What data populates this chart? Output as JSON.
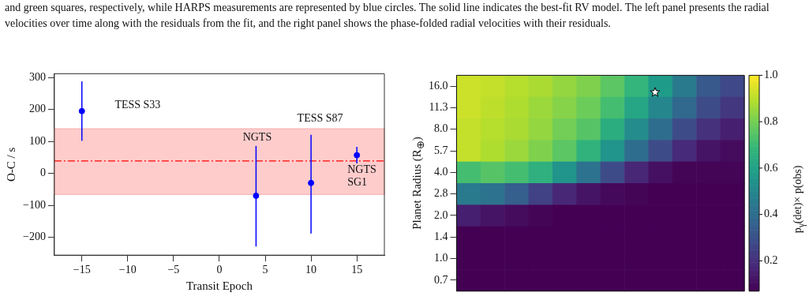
{
  "chart_data": [
    {
      "type": "scatter",
      "xlabel": "Transit Epoch",
      "ylabel": "O-C / s",
      "x": [
        -15,
        4,
        10,
        15
      ],
      "values": [
        195,
        -70,
        -30,
        57
      ],
      "errors": [
        [
          102,
          288
        ],
        [
          -229,
          86
        ],
        [
          -188,
          121
        ],
        [
          31,
          83
        ]
      ],
      "color": "#0000ff",
      "marker": "circle",
      "legend": false,
      "grid": false,
      "xlim": [
        -18,
        18
      ],
      "xticks": [
        -15,
        -10,
        -5,
        0,
        5,
        10,
        15
      ],
      "ylim": [
        -256,
        312
      ],
      "yticks": [
        -200,
        -100,
        0,
        100,
        200,
        300
      ],
      "bands": [
        {
          "axis": "y",
          "from": -66,
          "to": 140,
          "color": "#ffcccc"
        }
      ],
      "ref_lines": [
        {
          "axis": "y",
          "value": 39,
          "color": "#ff0000",
          "line_style": "dashed"
        }
      ],
      "annotations": [
        "and green squares, respectively, while HARPS measurements are represented by blue circles. The solid line indicates the best-fit RV model. The left panel presents the radial velocities over time along with the residuals from the fit, and the right panel shows the phase-folded radial velocities with their residuals.",
        "TESS S33",
        "TESS S87",
        "NGTS",
        {
          "text": "NGTS\nSG1",
          "x": 15,
          "y": 57
        }
      ]
    },
    {
      "type": "heatmap",
      "ylabel": "Planet Radius (R$_{⊕}$)",
      "clabel": "p$_{γ}$(det)× p(obs)",
      "categories": [
        null,
        null,
        null,
        null,
        null,
        null,
        null,
        null,
        null,
        null,
        null,
        null
      ],
      "y_categories": [
        "16.0",
        "11.3",
        "8.0",
        "5.7",
        "4.0",
        "2.8",
        "2.0",
        "1.4",
        "1.0",
        "0.7"
      ],
      "cells": [
        [
          0.93,
          0.92,
          0.9,
          0.88,
          0.85,
          0.82,
          0.76,
          0.68,
          0.58,
          0.45,
          0.33,
          0.27
        ],
        [
          0.93,
          0.91,
          0.89,
          0.86,
          0.83,
          0.79,
          0.72,
          0.62,
          0.5,
          0.38,
          0.28,
          0.22
        ],
        [
          0.92,
          0.9,
          0.88,
          0.85,
          0.8,
          0.75,
          0.65,
          0.52,
          0.4,
          0.28,
          0.2,
          0.15
        ],
        [
          0.92,
          0.89,
          0.86,
          0.82,
          0.76,
          0.67,
          0.55,
          0.4,
          0.28,
          0.18,
          0.12,
          0.1
        ],
        [
          0.72,
          0.75,
          0.72,
          0.66,
          0.55,
          0.42,
          0.28,
          0.17,
          0.11,
          0.08,
          0.08,
          0.08
        ],
        [
          0.45,
          0.42,
          0.35,
          0.25,
          0.17,
          0.12,
          0.09,
          0.08,
          0.07,
          0.07,
          0.07,
          0.07
        ],
        [
          0.15,
          0.12,
          0.1,
          0.08,
          0.07,
          0.07,
          0.07,
          0.07,
          0.07,
          0.07,
          0.07,
          0.07
        ],
        [
          0.07,
          0.07,
          0.07,
          0.07,
          0.07,
          0.07,
          0.07,
          0.07,
          0.07,
          0.07,
          0.07,
          0.07
        ],
        [
          0.07,
          0.07,
          0.07,
          0.07,
          0.07,
          0.07,
          0.07,
          0.07,
          0.07,
          0.07,
          0.07,
          0.07
        ],
        [
          0.07,
          0.07,
          0.07,
          0.07,
          0.07,
          0.07,
          0.07,
          0.07,
          0.07,
          0.07,
          0.07,
          0.07
        ]
      ],
      "clim": [
        0.07,
        1.0
      ],
      "cticks": [
        0.2,
        0.4,
        0.6,
        0.8,
        {
          "value": 1.0,
          "label": "1.0"
        }
      ]
    }
  ]
}
